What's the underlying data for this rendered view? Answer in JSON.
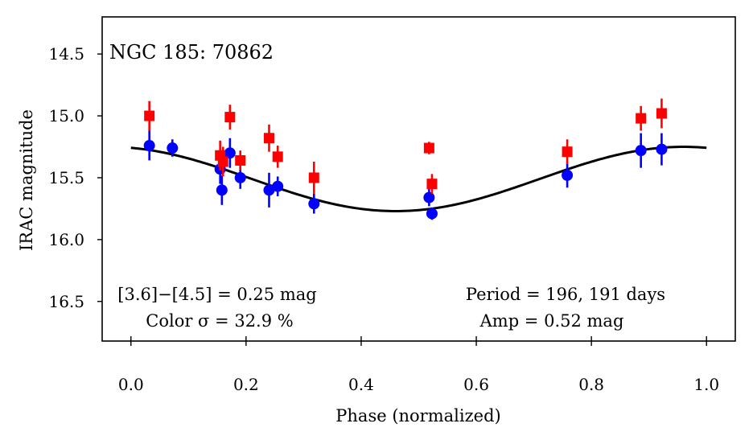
{
  "chart_data": {
    "type": "scatter",
    "title": "NGC 185:  70862",
    "xlabel": "Phase (normalized)",
    "ylabel": "IRAC magnitude",
    "xlim": [
      -0.05,
      1.05
    ],
    "ylim": [
      16.82,
      14.2
    ],
    "y_inverted": true,
    "grid": false,
    "x_ticks": [
      0.0,
      0.2,
      0.4,
      0.6,
      0.8,
      1.0
    ],
    "x_tick_labels": [
      "0.0",
      "0.2",
      "0.4",
      "0.6",
      "0.8",
      "1.0"
    ],
    "y_ticks": [
      14.5,
      15.0,
      15.5,
      16.0,
      16.5
    ],
    "y_tick_labels": [
      "14.5",
      "15.0",
      "15.5",
      "16.0",
      "16.5"
    ],
    "annotations": {
      "color_index": "[3.6]−[4.5] = 0.25 mag",
      "color_sigma": "Color σ = 32.9 %",
      "period": "Period = 196, 191 days",
      "amplitude": "Amp = 0.52 mag"
    },
    "colors": {
      "band_3_6": "#0000ff",
      "band_4_5": "#ff0000",
      "fit": "#000000"
    },
    "series": [
      {
        "marker": "circle",
        "color": "#0000ff",
        "points": [
          {
            "x": 0.032,
            "y": 15.24,
            "err": 0.12
          },
          {
            "x": 0.072,
            "y": 15.26,
            "err": 0.07
          },
          {
            "x": 0.155,
            "y": 15.43,
            "err": 0.12
          },
          {
            "x": 0.158,
            "y": 15.6,
            "err": 0.12
          },
          {
            "x": 0.172,
            "y": 15.3,
            "err": 0.12
          },
          {
            "x": 0.19,
            "y": 15.5,
            "err": 0.09
          },
          {
            "x": 0.24,
            "y": 15.6,
            "err": 0.14
          },
          {
            "x": 0.255,
            "y": 15.57,
            "err": 0.08
          },
          {
            "x": 0.318,
            "y": 15.71,
            "err": 0.08
          },
          {
            "x": 0.518,
            "y": 15.66,
            "err": 0.07
          },
          {
            "x": 0.523,
            "y": 15.79,
            "err": 0.05
          },
          {
            "x": 0.758,
            "y": 15.48,
            "err": 0.1
          },
          {
            "x": 0.886,
            "y": 15.28,
            "err": 0.14
          },
          {
            "x": 0.922,
            "y": 15.27,
            "err": 0.13
          }
        ]
      },
      {
        "marker": "square",
        "color": "#ff0000",
        "points": [
          {
            "x": 0.032,
            "y": 15.0,
            "err": 0.12
          },
          {
            "x": 0.155,
            "y": 15.32,
            "err": 0.12
          },
          {
            "x": 0.16,
            "y": 15.37,
            "err": 0.12
          },
          {
            "x": 0.172,
            "y": 15.01,
            "err": 0.1
          },
          {
            "x": 0.19,
            "y": 15.36,
            "err": 0.08
          },
          {
            "x": 0.24,
            "y": 15.18,
            "err": 0.11
          },
          {
            "x": 0.255,
            "y": 15.33,
            "err": 0.09
          },
          {
            "x": 0.318,
            "y": 15.5,
            "err": 0.13
          },
          {
            "x": 0.518,
            "y": 15.26,
            "err": 0.05
          },
          {
            "x": 0.523,
            "y": 15.55,
            "err": 0.08
          },
          {
            "x": 0.758,
            "y": 15.29,
            "err": 0.1
          },
          {
            "x": 0.886,
            "y": 15.02,
            "err": 0.1
          },
          {
            "x": 0.922,
            "y": 14.98,
            "err": 0.12
          }
        ]
      }
    ],
    "fit_curve": {
      "color": "#000000",
      "mean_mag": 15.51,
      "amplitude_mag": 0.52,
      "phase_of_min_brightness": 0.46,
      "x_range": [
        0.0,
        1.0
      ]
    }
  }
}
